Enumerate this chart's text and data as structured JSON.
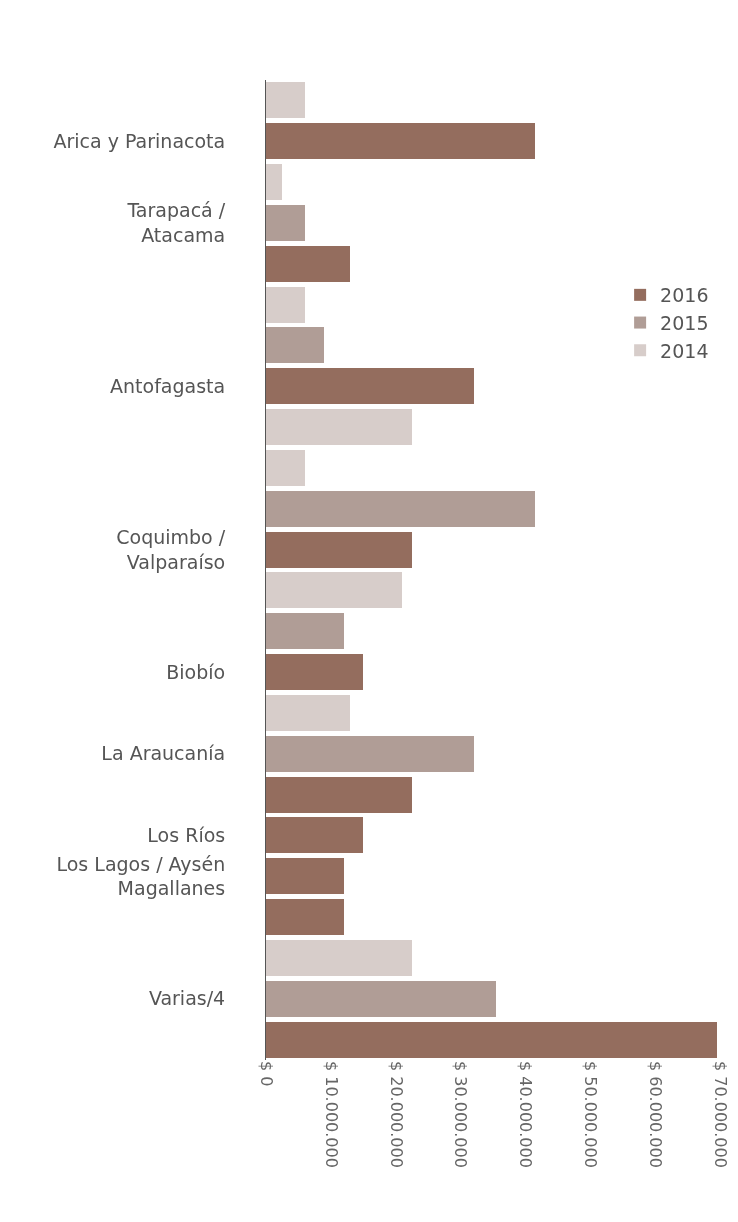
{
  "chart_data": {
    "type": "bar",
    "orientation": "horizontal",
    "stacked": true,
    "categories": [
      null,
      "Arica y Parinacota",
      null,
      "Tarapacá /\nAtacama",
      null,
      null,
      null,
      "Antofagasta",
      null,
      null,
      null,
      "Coquimbo /\nValparaíso",
      null,
      null,
      "Biobío",
      null,
      "La Araucanía",
      null,
      "Los Ríos",
      "Los Lagos / Aysén\nMagallanes",
      null,
      null,
      "Varias/4",
      null
    ],
    "series": [
      {
        "name": "2014",
        "color": "#d7cdca",
        "values": [
          6000000,
          null,
          2500000,
          null,
          null,
          6000000,
          null,
          null,
          22500000,
          6000000,
          null,
          null,
          21000000,
          null,
          null,
          13000000,
          null,
          null,
          null,
          null,
          null,
          22500000,
          null,
          null
        ]
      },
      {
        "name": "2015",
        "color": "#b09d96",
        "values": [
          null,
          null,
          null,
          6000000,
          null,
          null,
          9000000,
          null,
          null,
          null,
          41500000,
          null,
          null,
          12000000,
          null,
          null,
          32000000,
          null,
          null,
          null,
          null,
          null,
          35500000,
          null
        ]
      },
      {
        "name": "2016",
        "color": "#946d5e",
        "values": [
          null,
          41500000,
          null,
          null,
          13000000,
          null,
          null,
          32000000,
          null,
          null,
          null,
          22500000,
          null,
          null,
          15000000,
          null,
          null,
          22500000,
          15000000,
          12000000,
          12000000,
          null,
          null,
          69500000
        ]
      }
    ],
    "xlim": [
      0,
      70000000
    ],
    "xticks": [
      {
        "value": 0,
        "label": "$ 0"
      },
      {
        "value": 10000000,
        "label": "$ 10.000.000"
      },
      {
        "value": 20000000,
        "label": "$ 20.000.000"
      },
      {
        "value": 30000000,
        "label": "$ 30.000.000"
      },
      {
        "value": 40000000,
        "label": "$ 40.000.000"
      },
      {
        "value": 50000000,
        "label": "$ 50.000.000"
      },
      {
        "value": 60000000,
        "label": "$ 60.000.000"
      },
      {
        "value": 70000000,
        "label": "$ 70.000.000"
      }
    ],
    "grid": false,
    "legend": "right"
  }
}
